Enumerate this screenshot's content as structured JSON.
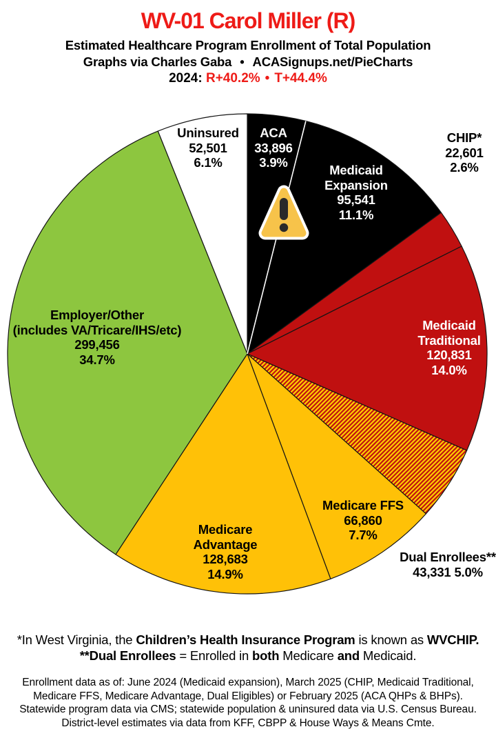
{
  "header": {
    "title": "WV-01 Carol Miller (R)",
    "title_color": "#EE1B17",
    "subtitle": "Estimated Healthcare Program Enrollment of Total Population",
    "credit_left": "Graphs via Charles Gaba",
    "credit_sep": "•",
    "credit_right": "ACASignups.net/PieCharts",
    "partisan": {
      "year_label": "2024:",
      "r_lean": "R+40.2%",
      "sep": "•",
      "t_lean": "T+44.4%",
      "lean_color": "#EE1B17"
    }
  },
  "icons": {
    "warning": "warning-triangle"
  },
  "chart_data": {
    "type": "pie",
    "layout": {
      "start_angle_deg": 0,
      "direction": "clockwise",
      "legend": "none",
      "labels": "on-slice-or-outside"
    },
    "slices": [
      {
        "name": "ACA",
        "value": 33896,
        "value_str": "33,896",
        "pct": 3.9,
        "pct_str": "3.9%",
        "color": "#000000",
        "text_color": "#ffffff",
        "label_lines": [
          "ACA",
          "33,896",
          "3.9%"
        ]
      },
      {
        "name": "Medicaid Expansion",
        "value": 95541,
        "value_str": "95,541",
        "pct": 11.1,
        "pct_str": "11.1%",
        "color": "#000000",
        "text_color": "#ffffff",
        "label_lines": [
          "Medicaid",
          "Expansion",
          "95,541",
          "11.1%"
        ]
      },
      {
        "name": "CHIP*",
        "value": 22601,
        "value_str": "22,601",
        "pct": 2.6,
        "pct_str": "2.6%",
        "color": "#C01010",
        "text_color": "#000000",
        "label_lines": [
          "CHIP*",
          "22,601",
          "2.6%"
        ]
      },
      {
        "name": "Medicaid Traditional",
        "value": 120831,
        "value_str": "120,831",
        "pct": 14.0,
        "pct_str": "14.0%",
        "color": "#C01010",
        "text_color": "#ffffff",
        "label_lines": [
          "Medicaid",
          "Traditional",
          "120,831",
          "14.0%"
        ]
      },
      {
        "name": "Dual Enrollees**",
        "value": 43331,
        "value_str": "43,331",
        "pct": 5.0,
        "pct_str": "5.0%",
        "pattern": "diagonal-stripes",
        "stripe_colors": [
          "#C01010",
          "#FFD100"
        ],
        "text_color": "#000000",
        "label_lines": [
          "Dual Enrollees**",
          "43,331 5.0%"
        ]
      },
      {
        "name": "Medicare FFS",
        "value": 66860,
        "value_str": "66,860",
        "pct": 7.7,
        "pct_str": "7.7%",
        "color": "#FFC107",
        "text_color": "#000000",
        "label_lines": [
          "Medicare FFS",
          "66,860",
          "7.7%"
        ]
      },
      {
        "name": "Medicare Advantage",
        "value": 128683,
        "value_str": "128,683",
        "pct": 14.9,
        "pct_str": "14.9%",
        "color": "#FFC107",
        "text_color": "#000000",
        "label_lines": [
          "Medicare",
          "Advantage",
          "128,683",
          "14.9%"
        ]
      },
      {
        "name": "Employer/Other",
        "value": 299456,
        "value_str": "299,456",
        "pct": 34.7,
        "pct_str": "34.7%",
        "color": "#8DC63F",
        "text_color": "#000000",
        "label_lines": [
          "Employer/Other",
          "(includes VA/Tricare/IHS/etc)",
          "299,456",
          "34.7%"
        ]
      },
      {
        "name": "Uninsured",
        "value": 52501,
        "value_str": "52,501",
        "pct": 6.1,
        "pct_str": "6.1%",
        "color": "#FFFFFF",
        "text_color": "#000000",
        "label_lines": [
          "Uninsured",
          "52,501",
          "6.1%"
        ]
      }
    ]
  },
  "footnotes": {
    "chip_note": [
      {
        "t": "*In West Virginia, the "
      },
      {
        "t": "Children’s Health Insurance Program"
      },
      {
        "t": " is known as "
      },
      {
        "t": "WVCHIP."
      }
    ],
    "dual_note": [
      {
        "t": "**Dual Enrollees"
      },
      {
        "t": " = Enrolled in "
      },
      {
        "t": "both"
      },
      {
        "t": " Medicare "
      },
      {
        "t": "and"
      },
      {
        "t": " Medicaid."
      }
    ],
    "source_lines": [
      "Enrollment data as of: June 2024 (Medicaid expansion), March 2025 (CHIP, Medicaid Traditional,",
      "Medicare FFS, Medicare Advantage, Dual Eligibles) or February 2025 (ACA QHPs & BHPs).",
      "Statewide program data via CMS; statewide population & uninsured data via U.S. Census Bureau.",
      "District-level estimates via data from KFF, CBPP & House Ways & Means Cmte."
    ]
  }
}
